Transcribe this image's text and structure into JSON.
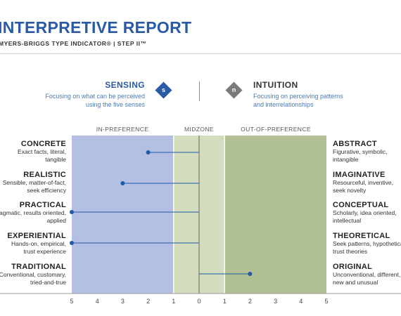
{
  "header": {
    "title": "INTERPRETIVE REPORT",
    "subtitle": "MYERS-BRIGGS TYPE INDICATOR®  |  STEP II™"
  },
  "poles": {
    "left": {
      "name": "SENSING",
      "letter": "s",
      "description_line1": "Focusing on what can be perceived",
      "description_line2": "using the five senses",
      "color": "#2a5aa6"
    },
    "right": {
      "name": "INTUITION",
      "letter": "n",
      "description_line1": "Focusing on perceiving patterns",
      "description_line2": "and interrelationships",
      "color": "#7a7a7a"
    }
  },
  "zones": {
    "in_preference": "IN-PREFERENCE",
    "midzone": "MIDZONE",
    "out_of_preference": "OUT-OF-PREFERENCE"
  },
  "colors": {
    "in_preference_fill": "#b3bfe3",
    "midzone_fill": "#d3dcbd",
    "out_of_preference_fill": "#b1c193",
    "dot_line": "#1f5aa6",
    "title": "#2a5aa6"
  },
  "chart_data": {
    "type": "scatter",
    "x_axis": {
      "tick_labels": [
        "5",
        "4",
        "3",
        "2",
        "1",
        "0",
        "1",
        "2",
        "3",
        "4",
        "5"
      ],
      "range": [
        -5,
        5
      ]
    },
    "note": "negative = toward left facet, positive = toward right facet",
    "facets": [
      {
        "left": {
          "name": "CONCRETE",
          "desc": [
            "Exact facts, literal,",
            "tangible"
          ]
        },
        "right": {
          "name": "ABSTRACT",
          "desc": [
            "Figurative, symbolic,",
            "intangible"
          ]
        },
        "score": -2
      },
      {
        "left": {
          "name": "REALISTIC",
          "desc": [
            "Sensible, matter-of-fact,",
            "seek efficiency"
          ]
        },
        "right": {
          "name": "IMAGINATIVE",
          "desc": [
            "Resourceful, inventive,",
            "seek novelty"
          ]
        },
        "score": -3
      },
      {
        "left": {
          "name": "PRACTICAL",
          "desc": [
            "Pragmatic, results oriented,",
            "applied"
          ]
        },
        "right": {
          "name": "CONCEPTUAL",
          "desc": [
            "Scholarly, idea oriented,",
            "intellectual"
          ]
        },
        "score": -5
      },
      {
        "left": {
          "name": "EXPERIENTIAL",
          "desc": [
            "Hands-on, empirical,",
            "trust experience"
          ]
        },
        "right": {
          "name": "THEORETICAL",
          "desc": [
            "Seek patterns, hypothetical,",
            "trust theories"
          ]
        },
        "score": -5
      },
      {
        "left": {
          "name": "TRADITIONAL",
          "desc": [
            "Conventional, customary,",
            "tried-and-true"
          ]
        },
        "right": {
          "name": "ORIGINAL",
          "desc": [
            "Unconventional, different,",
            "new and unusual"
          ]
        },
        "score": 2
      }
    ]
  }
}
